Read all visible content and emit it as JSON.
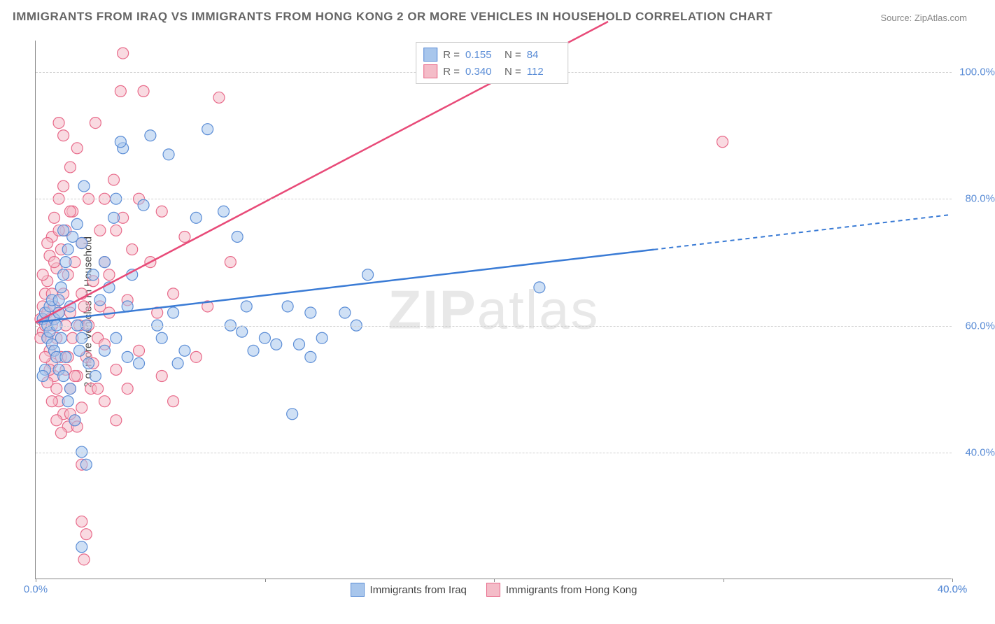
{
  "title": "IMMIGRANTS FROM IRAQ VS IMMIGRANTS FROM HONG KONG 2 OR MORE VEHICLES IN HOUSEHOLD CORRELATION CHART",
  "source": "Source: ZipAtlas.com",
  "watermark_a": "ZIP",
  "watermark_b": "atlas",
  "yaxis_title": "2 or more Vehicles in Household",
  "chart": {
    "type": "scatter",
    "xlim": [
      0,
      40
    ],
    "ylim": [
      20,
      105
    ],
    "xtick_positions": [
      0,
      10,
      20,
      30,
      40
    ],
    "xtick_labels": [
      "0.0%",
      "",
      "",
      "",
      "40.0%"
    ],
    "ytick_positions": [
      40,
      60,
      80,
      100
    ],
    "ytick_labels": [
      "40.0%",
      "60.0%",
      "80.0%",
      "100.0%"
    ],
    "grid_color": "#d0d0d0",
    "background_color": "#ffffff",
    "marker_radius": 8,
    "marker_opacity": 0.55,
    "series": [
      {
        "name": "Immigrants from Iraq",
        "fill_color": "#a8c6ec",
        "stroke_color": "#5b8dd6",
        "line_color": "#3a7bd5",
        "R": "0.155",
        "N": "84",
        "trend": {
          "x1": 0,
          "y1": 60.5,
          "x2": 27,
          "y2": 71,
          "x3": 40,
          "y3": 77.5,
          "dash_after": 27
        },
        "points": [
          [
            0.3,
            61
          ],
          [
            0.4,
            62
          ],
          [
            0.5,
            60
          ],
          [
            0.5,
            58
          ],
          [
            0.6,
            63
          ],
          [
            0.6,
            59
          ],
          [
            0.7,
            57
          ],
          [
            0.7,
            64
          ],
          [
            0.8,
            56
          ],
          [
            0.8,
            61
          ],
          [
            0.9,
            55
          ],
          [
            0.9,
            60
          ],
          [
            1.0,
            53
          ],
          [
            1.0,
            62
          ],
          [
            1.1,
            66
          ],
          [
            1.1,
            58
          ],
          [
            1.2,
            52
          ],
          [
            1.2,
            68
          ],
          [
            1.3,
            70
          ],
          [
            1.3,
            55
          ],
          [
            1.4,
            48
          ],
          [
            1.4,
            72
          ],
          [
            1.5,
            50
          ],
          [
            1.6,
            74
          ],
          [
            1.7,
            45
          ],
          [
            1.8,
            76
          ],
          [
            1.9,
            56
          ],
          [
            2.0,
            58
          ],
          [
            2.1,
            82
          ],
          [
            2.2,
            60
          ],
          [
            2.3,
            54
          ],
          [
            2.5,
            68
          ],
          [
            2.6,
            52
          ],
          [
            2.8,
            64
          ],
          [
            3.0,
            56
          ],
          [
            3.0,
            70
          ],
          [
            3.2,
            66
          ],
          [
            3.4,
            77
          ],
          [
            3.5,
            58
          ],
          [
            3.5,
            80
          ],
          [
            3.8,
            88
          ],
          [
            4.0,
            55
          ],
          [
            4.0,
            63
          ],
          [
            4.2,
            68
          ],
          [
            4.5,
            54
          ],
          [
            4.7,
            79
          ],
          [
            5.0,
            90
          ],
          [
            5.3,
            60
          ],
          [
            5.5,
            58
          ],
          [
            5.8,
            87
          ],
          [
            6.0,
            62
          ],
          [
            6.2,
            54
          ],
          [
            6.5,
            56
          ],
          [
            7.0,
            77
          ],
          [
            7.5,
            91
          ],
          [
            8.2,
            78
          ],
          [
            8.5,
            60
          ],
          [
            8.8,
            74
          ],
          [
            9.0,
            59
          ],
          [
            9.5,
            56
          ],
          [
            10.0,
            58
          ],
          [
            10.5,
            57
          ],
          [
            11.0,
            63
          ],
          [
            11.2,
            46
          ],
          [
            11.5,
            57
          ],
          [
            12.0,
            62
          ],
          [
            12.5,
            58
          ],
          [
            13.5,
            62
          ],
          [
            14.0,
            60
          ],
          [
            14.5,
            68
          ],
          [
            22.0,
            66
          ],
          [
            2.0,
            40
          ],
          [
            2.2,
            38
          ],
          [
            2.0,
            25
          ],
          [
            3.7,
            89
          ],
          [
            1.5,
            63
          ],
          [
            1.8,
            60
          ],
          [
            1.0,
            64
          ],
          [
            0.4,
            53
          ],
          [
            0.3,
            52
          ],
          [
            1.2,
            75
          ],
          [
            2.0,
            73
          ],
          [
            9.2,
            63
          ],
          [
            12.0,
            55
          ]
        ]
      },
      {
        "name": "Immigrants from Hong Kong",
        "fill_color": "#f4bcc8",
        "stroke_color": "#e86a8a",
        "line_color": "#e84a78",
        "R": "0.340",
        "N": "112",
        "trend": {
          "x1": 0,
          "y1": 60.5,
          "x2": 25,
          "y2": 108,
          "x3": 25,
          "y3": 108,
          "dash_after": 25
        },
        "points": [
          [
            0.2,
            61
          ],
          [
            0.3,
            59
          ],
          [
            0.3,
            63
          ],
          [
            0.4,
            60
          ],
          [
            0.4,
            65
          ],
          [
            0.5,
            58
          ],
          [
            0.5,
            62
          ],
          [
            0.5,
            67
          ],
          [
            0.6,
            56
          ],
          [
            0.6,
            61
          ],
          [
            0.6,
            71
          ],
          [
            0.7,
            54
          ],
          [
            0.7,
            60
          ],
          [
            0.7,
            74
          ],
          [
            0.8,
            52
          ],
          [
            0.8,
            63
          ],
          [
            0.8,
            77
          ],
          [
            0.9,
            50
          ],
          [
            0.9,
            58
          ],
          [
            0.9,
            69
          ],
          [
            1.0,
            48
          ],
          [
            1.0,
            62
          ],
          [
            1.0,
            80
          ],
          [
            1.1,
            55
          ],
          [
            1.1,
            72
          ],
          [
            1.2,
            46
          ],
          [
            1.2,
            65
          ],
          [
            1.2,
            82
          ],
          [
            1.3,
            53
          ],
          [
            1.3,
            75
          ],
          [
            1.4,
            44
          ],
          [
            1.4,
            68
          ],
          [
            1.5,
            50
          ],
          [
            1.5,
            62
          ],
          [
            1.5,
            85
          ],
          [
            1.6,
            58
          ],
          [
            1.6,
            78
          ],
          [
            1.7,
            45
          ],
          [
            1.7,
            70
          ],
          [
            1.8,
            52
          ],
          [
            1.8,
            88
          ],
          [
            1.9,
            60
          ],
          [
            2.0,
            47
          ],
          [
            2.0,
            73
          ],
          [
            2.1,
            63
          ],
          [
            2.2,
            55
          ],
          [
            2.3,
            80
          ],
          [
            2.4,
            50
          ],
          [
            2.5,
            67
          ],
          [
            2.6,
            92
          ],
          [
            2.7,
            58
          ],
          [
            2.8,
            75
          ],
          [
            3.0,
            48
          ],
          [
            3.0,
            70
          ],
          [
            3.2,
            62
          ],
          [
            3.4,
            83
          ],
          [
            3.5,
            53
          ],
          [
            3.7,
            97
          ],
          [
            3.8,
            77
          ],
          [
            4.0,
            64
          ],
          [
            4.2,
            72
          ],
          [
            4.5,
            56
          ],
          [
            4.7,
            97
          ],
          [
            5.0,
            70
          ],
          [
            5.3,
            62
          ],
          [
            5.5,
            78
          ],
          [
            6.0,
            65
          ],
          [
            6.5,
            74
          ],
          [
            7.0,
            55
          ],
          [
            7.5,
            63
          ],
          [
            8.0,
            96
          ],
          [
            8.5,
            70
          ],
          [
            1.0,
            92
          ],
          [
            1.2,
            90
          ],
          [
            1.5,
            46
          ],
          [
            1.8,
            44
          ],
          [
            2.0,
            29
          ],
          [
            2.2,
            27
          ],
          [
            2.1,
            23
          ],
          [
            3.8,
            103
          ],
          [
            0.5,
            51
          ],
          [
            0.7,
            48
          ],
          [
            1.1,
            43
          ],
          [
            30.0,
            89
          ],
          [
            3.0,
            57
          ],
          [
            3.5,
            45
          ],
          [
            2.3,
            60
          ],
          [
            2.7,
            50
          ],
          [
            1.4,
            55
          ],
          [
            1.0,
            75
          ],
          [
            0.8,
            70
          ],
          [
            0.5,
            73
          ],
          [
            0.3,
            68
          ],
          [
            0.2,
            58
          ],
          [
            0.4,
            55
          ],
          [
            0.6,
            53
          ],
          [
            2.0,
            65
          ],
          [
            2.5,
            54
          ],
          [
            3.0,
            80
          ],
          [
            3.5,
            75
          ],
          [
            4.0,
            50
          ],
          [
            1.7,
            52
          ],
          [
            2.8,
            63
          ],
          [
            2.0,
            38
          ],
          [
            1.5,
            78
          ],
          [
            0.9,
            45
          ],
          [
            0.7,
            65
          ],
          [
            1.3,
            60
          ],
          [
            5.5,
            52
          ],
          [
            6.0,
            48
          ],
          [
            4.5,
            80
          ],
          [
            3.2,
            68
          ]
        ]
      }
    ]
  },
  "legend_bottom": [
    {
      "label": "Immigrants from Iraq",
      "fill": "#a8c6ec",
      "stroke": "#5b8dd6"
    },
    {
      "label": "Immigrants from Hong Kong",
      "fill": "#f4bcc8",
      "stroke": "#e86a8a"
    }
  ]
}
